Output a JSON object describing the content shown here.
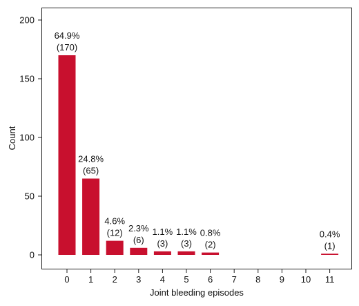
{
  "chart_data": {
    "type": "bar",
    "xlabel": "Joint bleeding episodes",
    "ylabel": "Count",
    "ylim": [
      0,
      200
    ],
    "yticks": [
      0,
      50,
      100,
      150,
      200
    ],
    "categories": [
      "0",
      "1",
      "2",
      "3",
      "4",
      "5",
      "6",
      "7",
      "8",
      "9",
      "10",
      "11"
    ],
    "values": [
      170,
      65,
      12,
      6,
      3,
      3,
      2,
      0,
      0,
      0,
      0,
      1
    ],
    "percent_labels": [
      "64.9%",
      "24.8%",
      "4.6%",
      "2.3%",
      "1.1%",
      "1.1%",
      "0.8%",
      "",
      "",
      "",
      "",
      "0.4%"
    ],
    "count_labels": [
      "(170)",
      "(65)",
      "(12)",
      "(6)",
      "(3)",
      "(3)",
      "(2)",
      "",
      "",
      "",
      "",
      "(1)"
    ],
    "bar_color": "#c8102e",
    "grid": false,
    "legend": "none"
  }
}
